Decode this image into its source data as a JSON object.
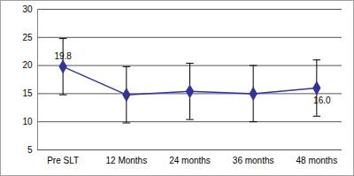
{
  "chart_data": {
    "type": "line",
    "categories": [
      "Pre SLT",
      "12 Months",
      "24 months",
      "36 months",
      "48 months"
    ],
    "values": [
      19.8,
      14.8,
      15.4,
      15.0,
      16.0
    ],
    "errors": [
      5.0,
      5.0,
      5.0,
      5.0,
      5.0
    ],
    "data_labels": true,
    "value_labels": [
      "19.8",
      null,
      null,
      null,
      "16.0"
    ],
    "color": "#333399",
    "marker": "diamond",
    "ylim": [
      5,
      30
    ],
    "yticks": [
      5,
      10,
      15,
      20,
      25,
      30
    ],
    "grid": true
  }
}
